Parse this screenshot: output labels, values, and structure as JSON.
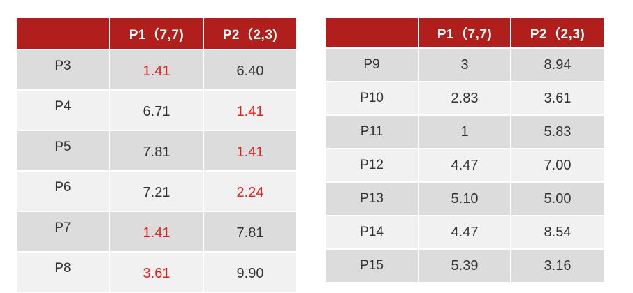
{
  "tables": [
    {
      "headers": [
        "",
        "P1（7,7)",
        "P2（2,3)"
      ],
      "rows": [
        {
          "label": "P3",
          "p1": "1.41",
          "p2": "6.40",
          "p1_highlight": true,
          "p2_highlight": false
        },
        {
          "label": "P4",
          "p1": "6.71",
          "p2": "1.41",
          "p1_highlight": false,
          "p2_highlight": true
        },
        {
          "label": "P5",
          "p1": "7.81",
          "p2": "1.41",
          "p1_highlight": false,
          "p2_highlight": true
        },
        {
          "label": "P6",
          "p1": "7.21",
          "p2": "2.24",
          "p1_highlight": false,
          "p2_highlight": true
        },
        {
          "label": "P7",
          "p1": "1.41",
          "p2": "7.81",
          "p1_highlight": true,
          "p2_highlight": false
        },
        {
          "label": "P8",
          "p1": "3.61",
          "p2": "9.90",
          "p1_highlight": true,
          "p2_highlight": false
        }
      ]
    },
    {
      "headers": [
        "",
        "P1（7,7)",
        "P2（2,3)"
      ],
      "rows": [
        {
          "label": "P9",
          "p1": "3",
          "p2": "8.94",
          "p1_highlight": false,
          "p2_highlight": false
        },
        {
          "label": "P10",
          "p1": "2.83",
          "p2": "3.61",
          "p1_highlight": false,
          "p2_highlight": false
        },
        {
          "label": "P11",
          "p1": "1",
          "p2": "5.83",
          "p1_highlight": false,
          "p2_highlight": false
        },
        {
          "label": "P12",
          "p1": "4.47",
          "p2": "7.00",
          "p1_highlight": false,
          "p2_highlight": false
        },
        {
          "label": "P13",
          "p1": "5.10",
          "p2": "5.00",
          "p1_highlight": false,
          "p2_highlight": false
        },
        {
          "label": "P14",
          "p1": "4.47",
          "p2": "8.54",
          "p1_highlight": false,
          "p2_highlight": false
        },
        {
          "label": "P15",
          "p1": "5.39",
          "p2": "3.16",
          "p1_highlight": false,
          "p2_highlight": false
        }
      ]
    }
  ],
  "colors": {
    "header_bg": "#b01f1c",
    "header_text": "#ffffff",
    "row_dark": "#dcdcdc",
    "row_light": "#f1f1f1",
    "highlight_text": "#e0201b",
    "normal_text": "#333333"
  }
}
